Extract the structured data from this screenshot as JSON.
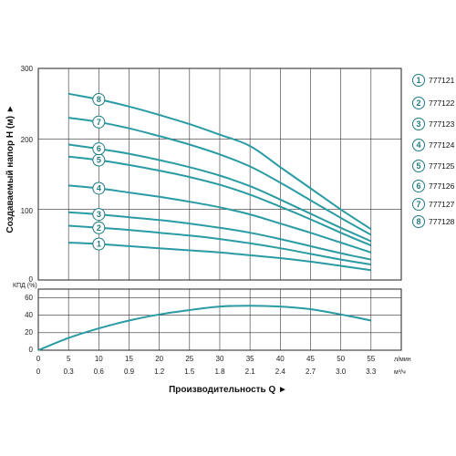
{
  "chart_data": [
    {
      "type": "line",
      "ylabel": "Создаваемый напор Н (м) ►",
      "y_ticks": [
        "300",
        "200",
        "100",
        "0"
      ],
      "ylim": [
        0,
        300
      ],
      "xlim": [
        0,
        55
      ],
      "grid": true,
      "legend": "right",
      "series_color": "#2a9ba3",
      "series": [
        {
          "name": "777121",
          "label": "1",
          "x": [
            0,
            5,
            10,
            15,
            20,
            25,
            30,
            35,
            40,
            45,
            50,
            55
          ],
          "y": [
            54,
            53,
            51,
            48,
            45,
            42,
            39,
            35,
            31,
            26,
            20,
            14
          ]
        },
        {
          "name": "777122",
          "label": "2",
          "x": [
            0,
            5,
            10,
            15,
            20,
            25,
            30,
            35,
            40,
            45,
            50,
            55
          ],
          "y": [
            78,
            77,
            74,
            71,
            67,
            63,
            58,
            52,
            45,
            37,
            29,
            22
          ]
        },
        {
          "name": "777123",
          "label": "3",
          "x": [
            0,
            5,
            10,
            15,
            20,
            25,
            30,
            35,
            40,
            45,
            50,
            55
          ],
          "y": [
            97,
            96,
            93,
            89,
            85,
            80,
            74,
            67,
            58,
            48,
            38,
            29
          ]
        },
        {
          "name": "777124",
          "label": "4",
          "x": [
            0,
            5,
            10,
            15,
            20,
            25,
            30,
            35,
            40,
            45,
            50,
            55
          ],
          "y": [
            136,
            134,
            130,
            124,
            118,
            111,
            103,
            93,
            80,
            67,
            53,
            39
          ]
        },
        {
          "name": "777125",
          "label": "5",
          "x": [
            0,
            5,
            10,
            15,
            20,
            25,
            30,
            35,
            40,
            45,
            50,
            55
          ],
          "y": [
            178,
            175,
            170,
            163,
            155,
            146,
            135,
            121,
            104,
            86,
            67,
            49
          ]
        },
        {
          "name": "777126",
          "label": "6",
          "x": [
            0,
            5,
            10,
            15,
            20,
            25,
            30,
            35,
            40,
            45,
            50,
            55
          ],
          "y": [
            195,
            192,
            186,
            179,
            170,
            160,
            148,
            133,
            114,
            94,
            74,
            55
          ]
        },
        {
          "name": "777127",
          "label": "7",
          "x": [
            0,
            5,
            10,
            15,
            20,
            25,
            30,
            35,
            40,
            45,
            50,
            55
          ],
          "y": [
            234,
            230,
            224,
            215,
            204,
            192,
            178,
            161,
            138,
            113,
            88,
            64
          ]
        },
        {
          "name": "777128",
          "label": "8",
          "x": [
            0,
            5,
            10,
            15,
            20,
            25,
            30,
            35,
            40,
            45,
            50,
            55
          ],
          "y": [
            268,
            264,
            256,
            246,
            234,
            221,
            206,
            190,
            160,
            130,
            100,
            72
          ]
        }
      ]
    },
    {
      "type": "line",
      "ylabel": "КПД (%)",
      "y_ticks": [
        "60",
        "40",
        "20",
        "0"
      ],
      "ylim": [
        0,
        70
      ],
      "xlim": [
        0,
        55
      ],
      "grid": true,
      "series_color": "#2a9ba3",
      "series": [
        {
          "x": [
            0,
            5,
            10,
            15,
            20,
            25,
            30,
            35,
            40,
            45,
            50,
            55
          ],
          "y": [
            0,
            14,
            25,
            34,
            41,
            46,
            50,
            51,
            50,
            47,
            41,
            34
          ]
        }
      ],
      "x_ticks_primary": [
        "0",
        "5",
        "10",
        "15",
        "20",
        "25",
        "30",
        "35",
        "40",
        "45",
        "50",
        "55"
      ],
      "x_unit_primary": "л/мин",
      "x_ticks_secondary": [
        "0",
        "0.3",
        "0.6",
        "0.9",
        "1.2",
        "1.5",
        "1.8",
        "2.1",
        "2.4",
        "2.7",
        "3.0",
        "3.3"
      ],
      "x_unit_secondary": "м³/ч",
      "xlabel": "Производительность Q ►"
    }
  ]
}
